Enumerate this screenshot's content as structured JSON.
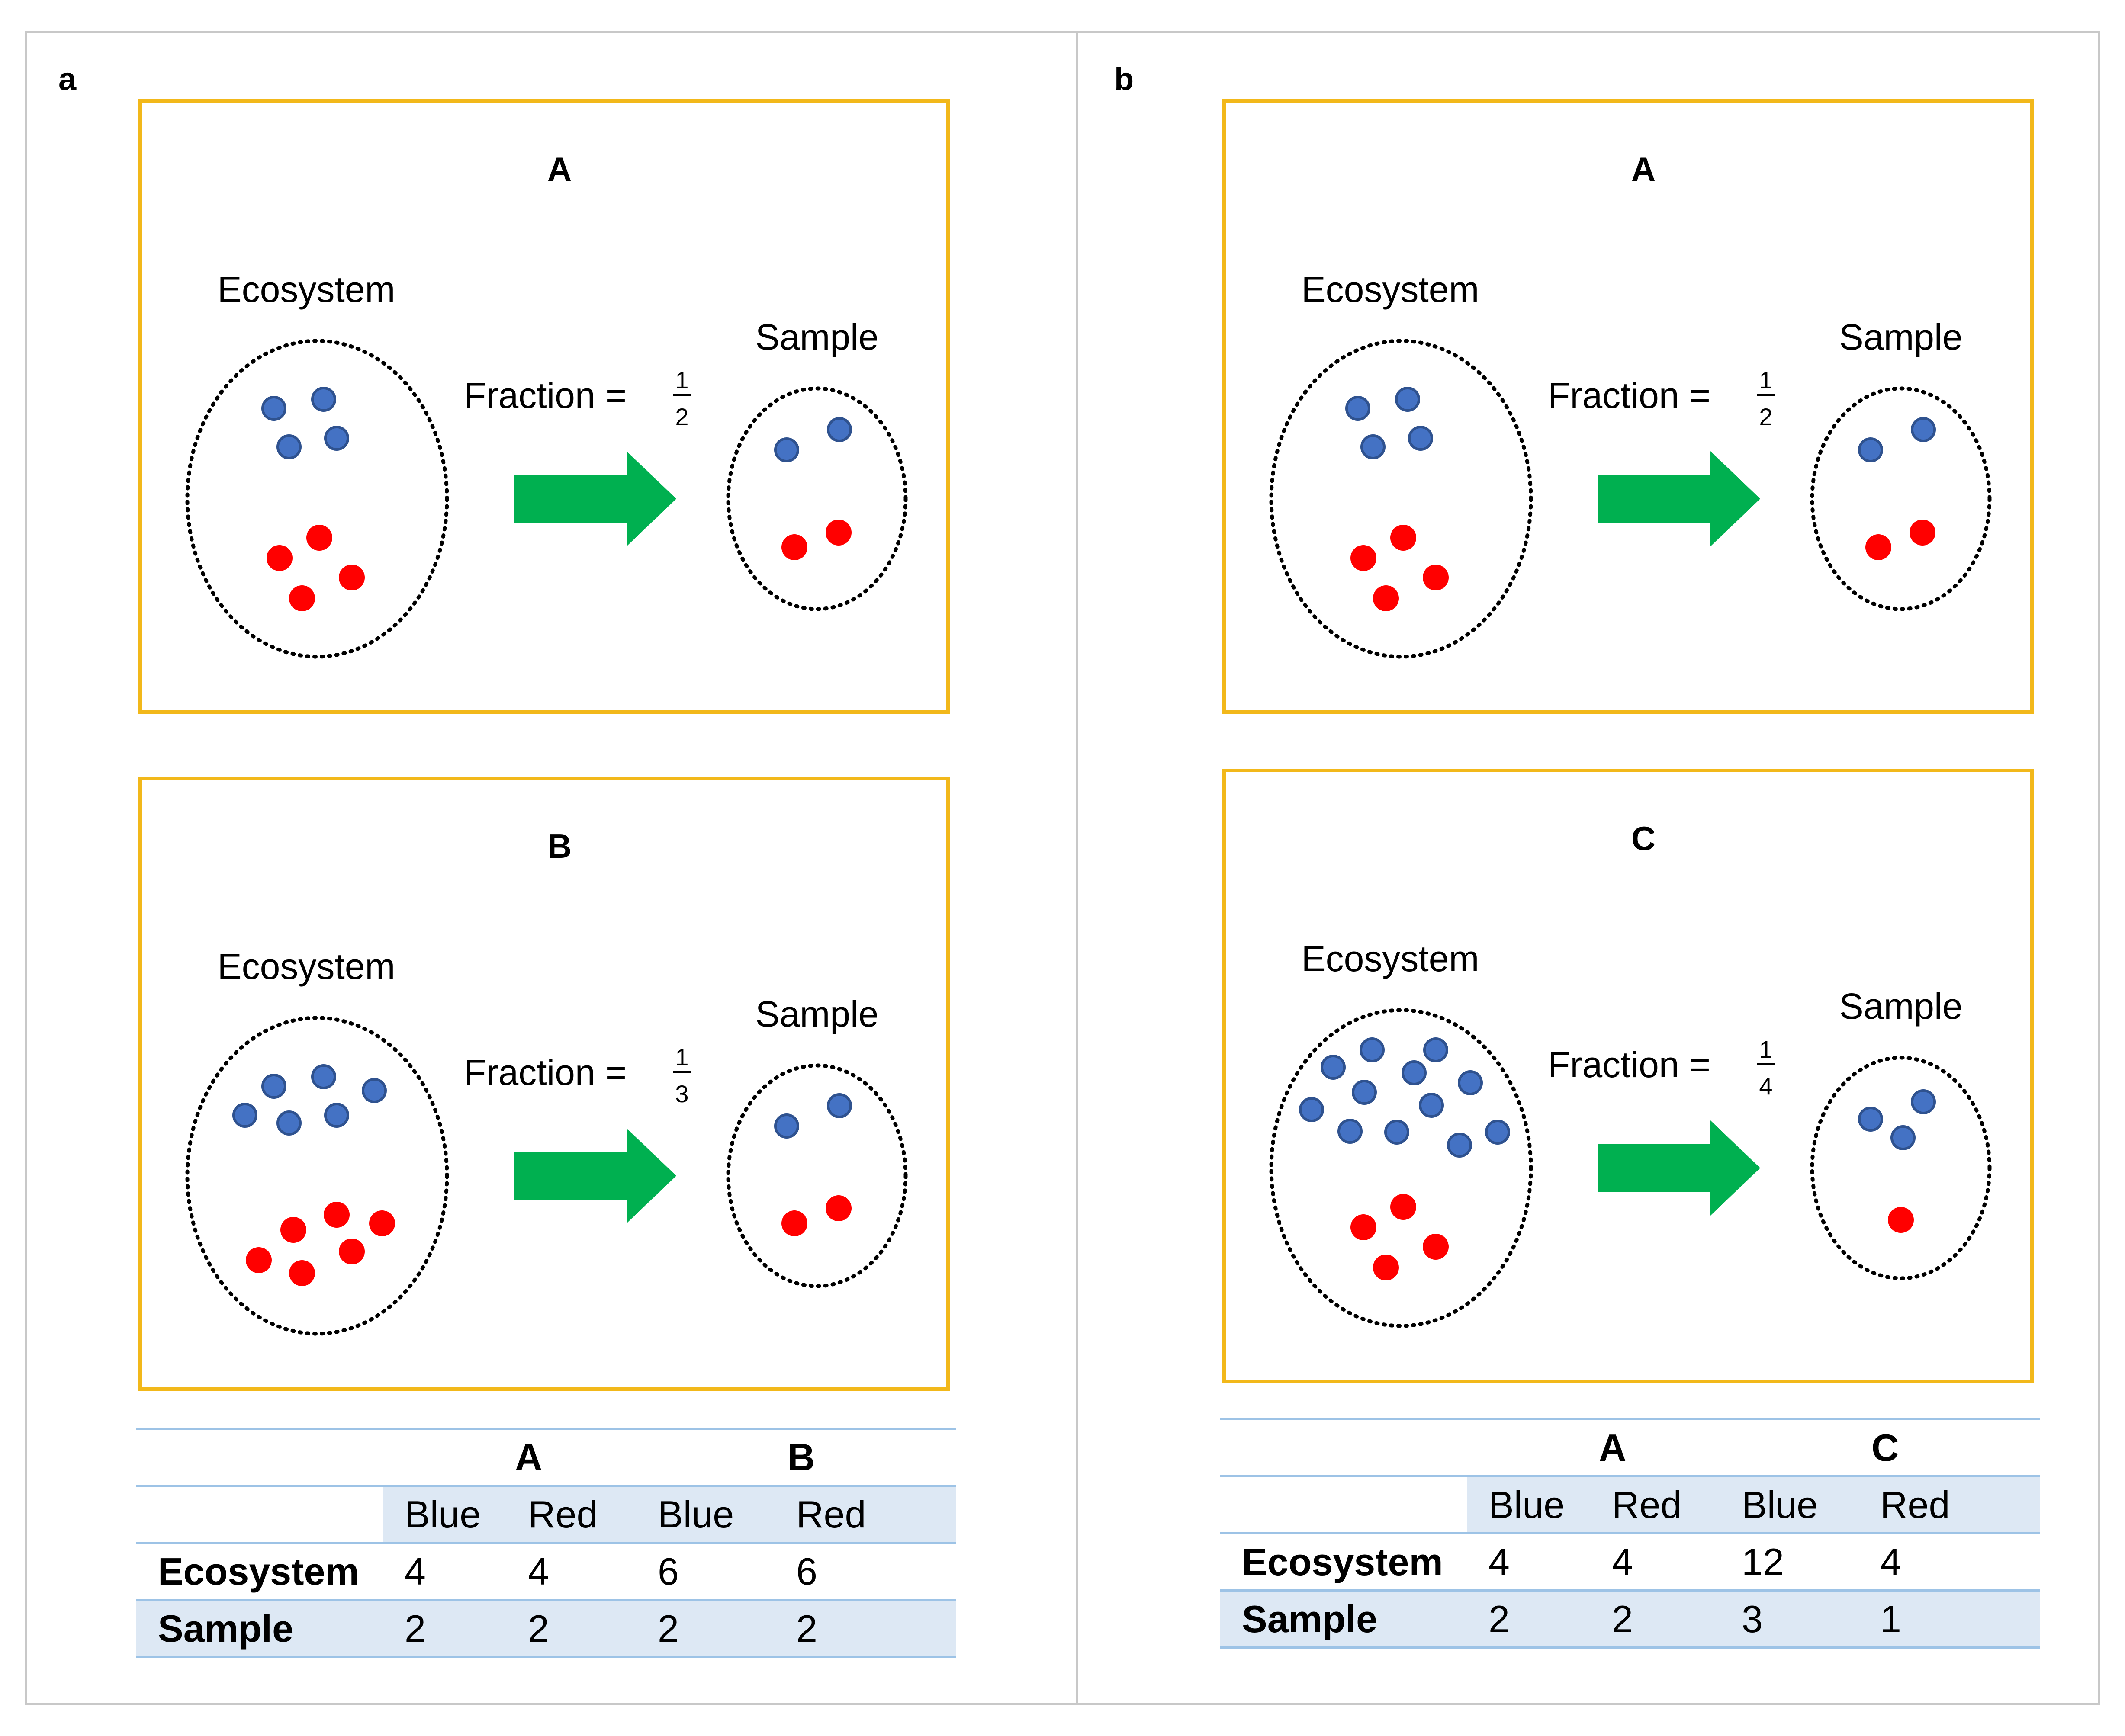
{
  "panels": [
    {
      "letter": "a",
      "scenarios": [
        {
          "title": "A",
          "ecosystem_label": "Ecosystem",
          "sample_label": "Sample",
          "fraction_label": "Fraction =",
          "fraction_num": "1",
          "fraction_den": "2",
          "ecosystem": {
            "blue": 4,
            "red": 4
          },
          "sample": {
            "blue": 2,
            "red": 2
          }
        },
        {
          "title": "B",
          "ecosystem_label": "Ecosystem",
          "sample_label": "Sample",
          "fraction_label": "Fraction =",
          "fraction_num": "1",
          "fraction_den": "3",
          "ecosystem": {
            "blue": 6,
            "red": 6
          },
          "sample": {
            "blue": 2,
            "red": 2
          }
        }
      ],
      "table": {
        "groups": [
          "A",
          "B"
        ],
        "columns": [
          "Blue",
          "Red",
          "Blue",
          "Red"
        ],
        "rows": [
          {
            "label": "Ecosystem",
            "values": [
              "4",
              "4",
              "6",
              "6"
            ]
          },
          {
            "label": "Sample",
            "values": [
              "2",
              "2",
              "2",
              "2"
            ]
          }
        ]
      }
    },
    {
      "letter": "b",
      "scenarios": [
        {
          "title": "A",
          "ecosystem_label": "Ecosystem",
          "sample_label": "Sample",
          "fraction_label": "Fraction =",
          "fraction_num": "1",
          "fraction_den": "2",
          "ecosystem": {
            "blue": 4,
            "red": 4
          },
          "sample": {
            "blue": 2,
            "red": 2
          }
        },
        {
          "title": "C",
          "ecosystem_label": "Ecosystem",
          "sample_label": "Sample",
          "fraction_label": "Fraction =",
          "fraction_num": "1",
          "fraction_den": "4",
          "ecosystem": {
            "blue": 12,
            "red": 4
          },
          "sample": {
            "blue": 3,
            "red": 1
          }
        }
      ],
      "table": {
        "groups": [
          "A",
          "C"
        ],
        "columns": [
          "Blue",
          "Red",
          "Blue",
          "Red"
        ],
        "rows": [
          {
            "label": "Ecosystem",
            "values": [
              "4",
              "4",
              "12",
              "4"
            ]
          },
          {
            "label": "Sample",
            "values": [
              "2",
              "2",
              "3",
              "1"
            ]
          }
        ]
      }
    }
  ],
  "colors": {
    "blue_dot": "#4472c4",
    "blue_dot_outline": "#2f528f",
    "red_dot": "#ff0000",
    "arrow": "#00b050",
    "box_border": "#f2b81a",
    "table_shade": "#dde8f4",
    "table_rule": "#9dc3e6",
    "frame": "#c8c8c8"
  }
}
